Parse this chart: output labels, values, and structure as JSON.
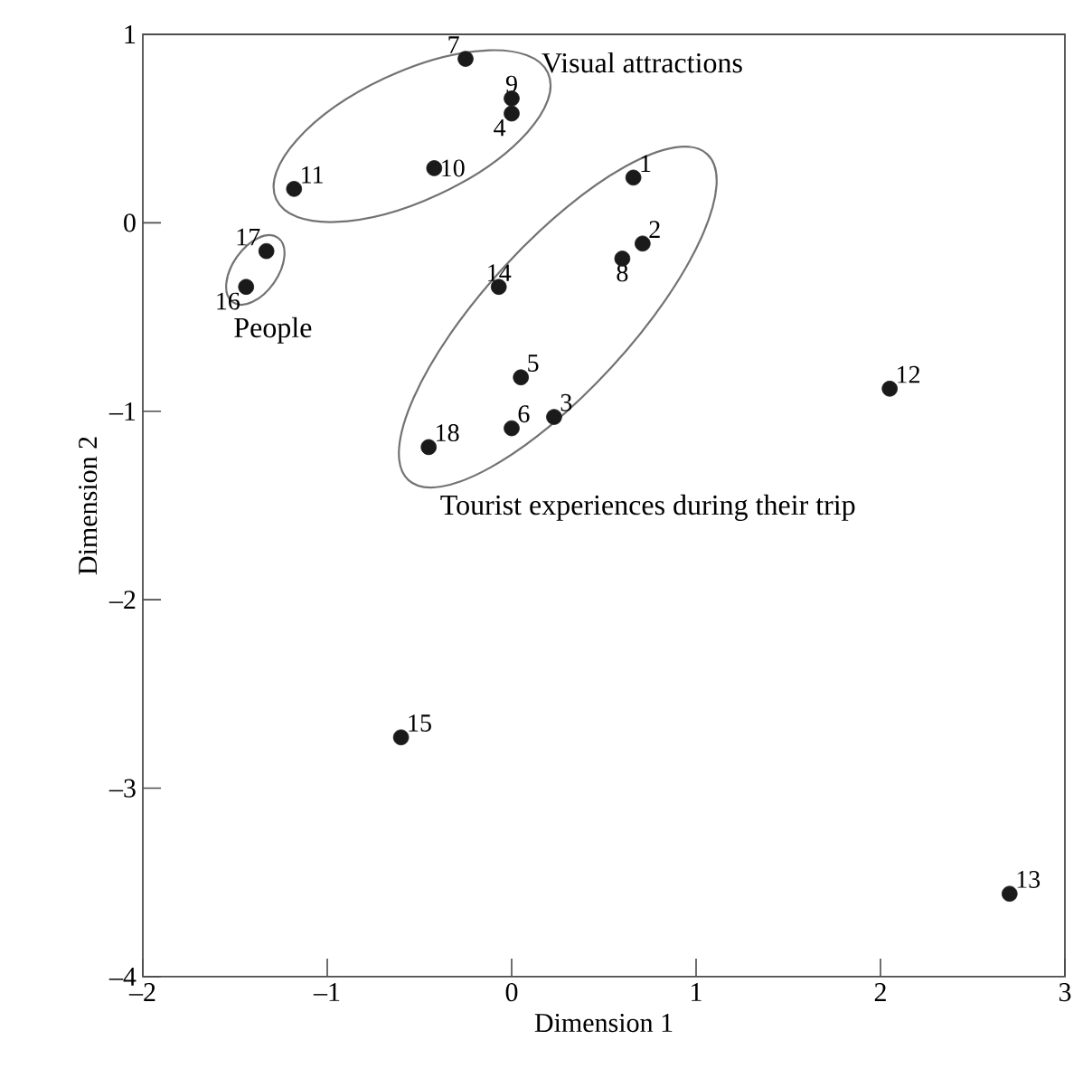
{
  "chart_data": {
    "type": "scatter",
    "xlabel": "Dimension 1",
    "ylabel": "Dimension 2",
    "xlim": [
      -2,
      3
    ],
    "ylim": [
      -4,
      1
    ],
    "xticks": [
      {
        "value": -2,
        "label": "–2"
      },
      {
        "value": -1,
        "label": "–1"
      },
      0,
      1,
      2,
      3
    ],
    "yticks": [
      {
        "value": -4,
        "label": "–4"
      },
      {
        "value": -3,
        "label": "–3"
      },
      {
        "value": -2,
        "label": "–2"
      },
      {
        "value": -1,
        "label": "–1"
      },
      0,
      1
    ],
    "marker": "circle",
    "series": [
      {
        "color": "#1a1a1a",
        "x": [
          0.66,
          0.71,
          0.23,
          0.0,
          0.05,
          0.0,
          -0.25,
          0.6,
          0.0,
          -0.42,
          -1.18,
          2.05,
          2.7,
          -0.07,
          -0.6,
          -1.44,
          -1.33,
          -0.45
        ],
        "values": [
          0.24,
          -0.11,
          -1.03,
          0.58,
          -0.82,
          -1.09,
          0.87,
          -0.19,
          0.66,
          0.29,
          0.18,
          -0.88,
          -3.56,
          -0.34,
          -2.73,
          -0.34,
          -0.15,
          -1.19
        ]
      }
    ],
    "annotations": [
      "Visual attractions",
      "People",
      "Tourist experiences during their trip",
      {
        "text": "1",
        "x": 0.66,
        "y": 0.24
      },
      {
        "text": "2",
        "x": 0.71,
        "y": -0.11
      },
      {
        "text": "3",
        "x": 0.23,
        "y": -1.03
      },
      {
        "text": "4",
        "x": 0.0,
        "y": 0.58
      },
      {
        "text": "5",
        "x": 0.05,
        "y": -0.82
      },
      {
        "text": "6",
        "x": 0.0,
        "y": -1.09
      },
      {
        "text": "7",
        "x": -0.25,
        "y": 0.87
      },
      {
        "text": "8",
        "x": 0.6,
        "y": -0.19
      },
      {
        "text": "9",
        "x": 0.0,
        "y": 0.66
      },
      {
        "text": "10",
        "x": -0.42,
        "y": 0.29
      },
      {
        "text": "11",
        "x": -1.18,
        "y": 0.18
      },
      {
        "text": "12",
        "x": 2.05,
        "y": -0.88
      },
      {
        "text": "13",
        "x": 2.7,
        "y": -3.56
      },
      {
        "text": "14",
        "x": -0.07,
        "y": -0.34
      },
      {
        "text": "15",
        "x": -0.6,
        "y": -2.73
      },
      {
        "text": "16",
        "x": -1.44,
        "y": -0.34
      },
      {
        "text": "17",
        "x": -1.33,
        "y": -0.15
      },
      {
        "text": "18",
        "x": -0.45,
        "y": -1.19
      }
    ]
  }
}
